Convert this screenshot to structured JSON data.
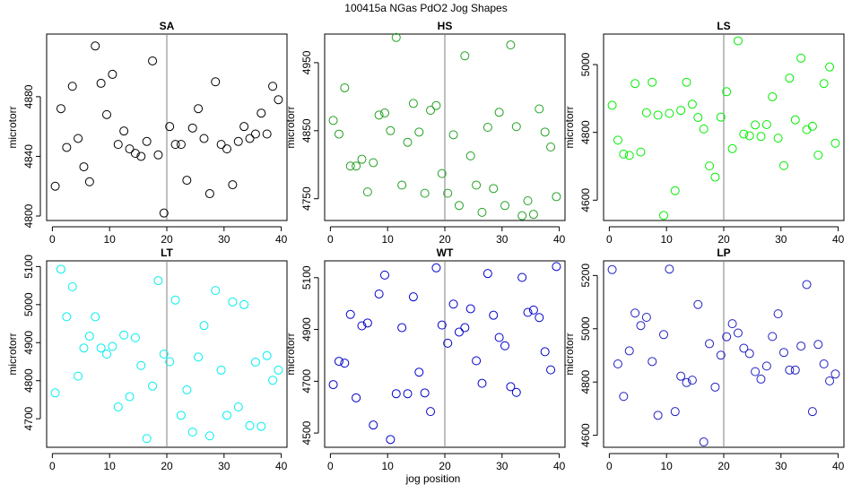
{
  "figure": {
    "suptitle": "100415a    NGas PdO2 Jog Shapes",
    "xlabel": "jog position"
  },
  "chart_data": [
    {
      "type": "scatter",
      "title": "SA",
      "ylabel": "microtorr",
      "color": "#000000",
      "xlim": [
        -1,
        41
      ],
      "ylim": [
        4797,
        4922
      ],
      "xticks": [
        0,
        10,
        20,
        30,
        40
      ],
      "yticks": [
        4800,
        4840,
        4880
      ],
      "vline": 20,
      "x": [
        0.5,
        1.5,
        2.5,
        3.5,
        4.5,
        5.5,
        6.5,
        7.5,
        8.5,
        9.5,
        10.5,
        11.5,
        12.5,
        13.5,
        14.5,
        15.5,
        16.5,
        17.5,
        18.5,
        19.5,
        20.5,
        21.5,
        22.5,
        23.5,
        24.5,
        25.5,
        26.5,
        27.5,
        28.5,
        29.5,
        30.5,
        31.5,
        32.5,
        33.5,
        34.5,
        35.5,
        36.5,
        37.5,
        38.5,
        39.5
      ],
      "y": [
        4820,
        4872,
        4846,
        4887,
        4852,
        4833,
        4823,
        4914,
        4889,
        4868,
        4895,
        4848,
        4857,
        4845,
        4842,
        4840,
        4850,
        4904,
        4841,
        4802,
        4860,
        4848,
        4848,
        4824,
        4859,
        4872,
        4852,
        4815,
        4890,
        4848,
        4845,
        4821,
        4850,
        4860,
        4852,
        4855,
        4869,
        4855,
        4887,
        4878
      ]
    },
    {
      "type": "scatter",
      "title": "HS",
      "ylabel": "microtorr",
      "color": "#22a022",
      "xlim": [
        -1,
        41
      ],
      "ylim": [
        4718,
        4992
      ],
      "xticks": [
        0,
        10,
        20,
        30,
        40
      ],
      "yticks": [
        4750,
        4850,
        4950
      ],
      "vline": 20,
      "x": [
        0.5,
        1.5,
        2.5,
        3.5,
        4.5,
        5.5,
        6.5,
        7.5,
        8.5,
        9.5,
        10.5,
        11.5,
        12.5,
        13.5,
        14.5,
        15.5,
        16.5,
        17.5,
        18.5,
        19.5,
        20.5,
        21.5,
        22.5,
        23.5,
        24.5,
        25.5,
        26.5,
        27.5,
        28.5,
        29.5,
        30.5,
        31.5,
        32.5,
        33.5,
        34.5,
        35.5,
        36.5,
        37.5,
        38.5,
        39.5
      ],
      "y": [
        4865,
        4845,
        4913,
        4798,
        4798,
        4808,
        4760,
        4803,
        4873,
        4876,
        4850,
        4987,
        4770,
        4833,
        4890,
        4848,
        4758,
        4880,
        4887,
        4787,
        4758,
        4844,
        4740,
        4960,
        4813,
        4770,
        4730,
        4855,
        4765,
        4877,
        4740,
        4976,
        4856,
        4725,
        4747,
        4727,
        4882,
        4848,
        4826,
        4753
      ]
    },
    {
      "type": "scatter",
      "title": "LS",
      "ylabel": "microtorr",
      "color": "#00ee00",
      "xlim": [
        -1,
        41
      ],
      "ylim": [
        4540,
        5090
      ],
      "xticks": [
        0,
        10,
        20,
        30,
        40
      ],
      "yticks": [
        4600,
        4800,
        5000
      ],
      "vline": 20,
      "x": [
        0.5,
        1.5,
        2.5,
        3.5,
        4.5,
        5.5,
        6.5,
        7.5,
        8.5,
        9.5,
        10.5,
        11.5,
        12.5,
        13.5,
        14.5,
        15.5,
        16.5,
        17.5,
        18.5,
        19.5,
        20.5,
        21.5,
        22.5,
        23.5,
        24.5,
        25.5,
        26.5,
        27.5,
        28.5,
        29.5,
        30.5,
        31.5,
        32.5,
        33.5,
        34.5,
        35.5,
        36.5,
        37.5,
        38.5,
        39.5
      ],
      "y": [
        4880,
        4777,
        4736,
        4732,
        4944,
        4742,
        4858,
        4948,
        4851,
        4555,
        4856,
        4628,
        4865,
        4948,
        4883,
        4844,
        4810,
        4701,
        4668,
        4845,
        4920,
        4752,
        5070,
        4795,
        4790,
        4822,
        4788,
        4823,
        4905,
        4783,
        4702,
        4960,
        4837,
        5019,
        4808,
        4818,
        4733,
        4944,
        4993,
        4768
      ]
    },
    {
      "type": "scatter",
      "title": "LT",
      "ylabel": "microtorr",
      "color": "#00eeee",
      "xlim": [
        -1,
        41
      ],
      "ylim": [
        4625,
        5115
      ],
      "xticks": [
        0,
        10,
        20,
        30,
        40
      ],
      "yticks": [
        4700,
        4800,
        4900,
        5000,
        5100
      ],
      "vline": 20,
      "x": [
        0.5,
        1.5,
        2.5,
        3.5,
        4.5,
        5.5,
        6.5,
        7.5,
        8.5,
        9.5,
        10.5,
        11.5,
        12.5,
        13.5,
        14.5,
        15.5,
        16.5,
        17.5,
        18.5,
        19.5,
        20.5,
        21.5,
        22.5,
        23.5,
        24.5,
        25.5,
        26.5,
        27.5,
        28.5,
        29.5,
        30.5,
        31.5,
        32.5,
        33.5,
        34.5,
        35.5,
        36.5,
        37.5,
        38.5,
        39.5
      ],
      "y": [
        4768,
        5093,
        4968,
        5047,
        4812,
        4886,
        4917,
        4968,
        4886,
        4870,
        4890,
        4731,
        4920,
        4758,
        4913,
        4840,
        4648,
        4786,
        5063,
        4870,
        4850,
        5012,
        4709,
        4776,
        4665,
        4862,
        4945,
        4655,
        5037,
        4828,
        4709,
        5007,
        4731,
        5000,
        4682,
        4849,
        4680,
        4866,
        4801,
        4828
      ]
    },
    {
      "type": "scatter",
      "title": "WT",
      "ylabel": "microtorr",
      "color": "#0000cc",
      "xlim": [
        -1,
        41
      ],
      "ylim": [
        4445,
        5165
      ],
      "xticks": [
        0,
        10,
        20,
        30,
        40
      ],
      "yticks": [
        4500,
        4700,
        4900,
        5100
      ],
      "vline": 20,
      "x": [
        0.5,
        1.5,
        2.5,
        3.5,
        4.5,
        5.5,
        6.5,
        7.5,
        8.5,
        9.5,
        10.5,
        11.5,
        12.5,
        13.5,
        14.5,
        15.5,
        16.5,
        17.5,
        18.5,
        19.5,
        20.5,
        21.5,
        22.5,
        23.5,
        24.5,
        25.5,
        26.5,
        27.5,
        28.5,
        29.5,
        30.5,
        31.5,
        32.5,
        33.5,
        34.5,
        35.5,
        36.5,
        37.5,
        38.5,
        39.5
      ],
      "y": [
        4687,
        4777,
        4770,
        4958,
        4636,
        4914,
        4925,
        4531,
        5037,
        5110,
        4475,
        4652,
        4907,
        4652,
        5026,
        4735,
        4655,
        4583,
        5138,
        4917,
        4847,
        4998,
        4890,
        4907,
        4980,
        4779,
        4692,
        5116,
        4955,
        4869,
        4837,
        4679,
        4657,
        5101,
        4966,
        4975,
        4946,
        4814,
        4744,
        5143
      ]
    },
    {
      "type": "scatter",
      "title": "LP",
      "ylabel": "microtorr",
      "color": "#2020c0",
      "xlim": [
        -1,
        41
      ],
      "ylim": [
        4555,
        5255
      ],
      "xticks": [
        0,
        10,
        20,
        30,
        40
      ],
      "yticks": [
        4600,
        4800,
        5000,
        5200
      ],
      "vline": 20,
      "x": [
        0.5,
        1.5,
        2.5,
        3.5,
        4.5,
        5.5,
        6.5,
        7.5,
        8.5,
        9.5,
        10.5,
        11.5,
        12.5,
        13.5,
        14.5,
        15.5,
        16.5,
        17.5,
        18.5,
        19.5,
        20.5,
        21.5,
        22.5,
        23.5,
        24.5,
        25.5,
        26.5,
        27.5,
        28.5,
        29.5,
        30.5,
        31.5,
        32.5,
        33.5,
        34.5,
        35.5,
        36.5,
        37.5,
        38.5,
        39.5
      ],
      "y": [
        5222,
        4868,
        4746,
        4917,
        5059,
        5012,
        5043,
        4877,
        4675,
        4978,
        5224,
        4689,
        4822,
        4798,
        4807,
        5091,
        4575,
        4944,
        4781,
        4901,
        4970,
        5019,
        4984,
        4927,
        4907,
        4839,
        4811,
        4860,
        4971,
        5056,
        4911,
        4845,
        4845,
        4935,
        5166,
        4689,
        4941,
        4868,
        4804,
        4830
      ]
    }
  ]
}
